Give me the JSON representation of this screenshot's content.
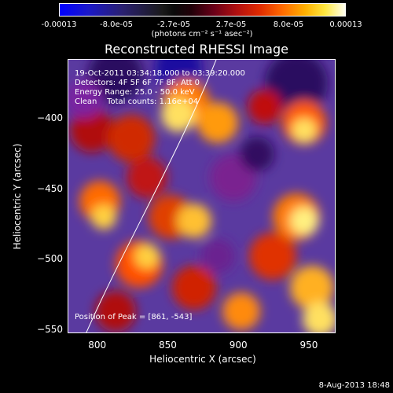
{
  "chart_data": {
    "type": "heatmap",
    "title": "Reconstructed RHESSI Image",
    "xlabel": "Heliocentric X (arcsec)",
    "ylabel": "Heliocentric Y (arcsec)",
    "xlim": [
      779,
      969
    ],
    "ylim": [
      -553,
      -358
    ],
    "x_ticks": [
      "800",
      "850",
      "900",
      "950"
    ],
    "y_ticks": [
      "-400",
      "-450",
      "-500",
      "-550"
    ],
    "colorbar": {
      "ticks": [
        "-0.00013",
        "-8.0e-05",
        "-2.7e-05",
        "2.7e-05",
        "8.0e-05",
        "0.00013"
      ],
      "unit": "(photons cm⁻² s⁻¹ asec⁻²)"
    },
    "annotations": {
      "time": "19-Oct-2011 03:34:18.000 to 03:39:20.000",
      "detectors": "Detectors: 4F 5F 6F 7F 8F, Att 0",
      "energy": "Energy Range: 25.0 - 50.0 keV",
      "clean": "Clean    Total counts: 1.16e+04",
      "peak": "Position of Peak = [861, -543]"
    },
    "peak": [
      861,
      -543
    ]
  },
  "footer": {
    "date": "8-Aug-2013 18:48"
  }
}
